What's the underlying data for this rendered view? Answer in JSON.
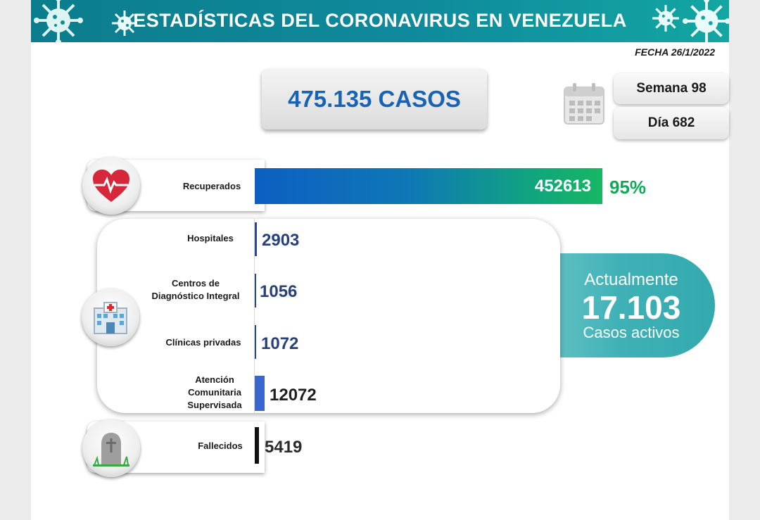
{
  "header": {
    "title": "ESTADÍSTICAS DEL CORONAVIRUS EN VENEZUELA"
  },
  "date": "FECHA 26/1/2022",
  "total_cases": "475.135 CASOS",
  "week": "Semana 98",
  "day": "Día 682",
  "recovered": {
    "label": "Recuperados",
    "value": "452613",
    "percent": "95%"
  },
  "hospitals": {
    "label": "Hospitales",
    "value": "2903"
  },
  "cdi": {
    "label_line1": "Centros de",
    "label_line2": "Diagnóstico Integral",
    "value": "1056"
  },
  "private_clinics": {
    "label": "Clínicas privadas",
    "value": "1072"
  },
  "community": {
    "label_line1": "Atención",
    "label_line2": "Comunitaria",
    "label_line3": "Supervisada",
    "value": "12072"
  },
  "deaths": {
    "label": "Fallecidos",
    "value": "5419"
  },
  "active": {
    "line1": "Actualmente",
    "value": "17.103",
    "line3": "Casos activos"
  },
  "colors": {
    "header": "#0f8a9c",
    "accent_blue": "#1863b3",
    "recovered_green": "#11a85a",
    "active_teal": "#3fb1b6"
  },
  "icons": [
    "virus-icon",
    "calendar-icon",
    "heart-pulse-icon",
    "hospital-icon",
    "gravestone-icon"
  ]
}
